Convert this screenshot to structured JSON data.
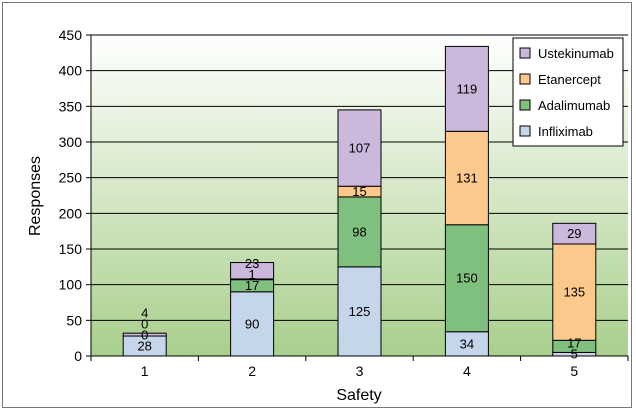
{
  "chart_data": {
    "type": "bar",
    "stacked": true,
    "categories": [
      "1",
      "2",
      "3",
      "4",
      "5"
    ],
    "xlabel": "Safety",
    "ylabel": "Responses",
    "ylim": [
      0,
      450
    ],
    "yticks": [
      "0",
      "50",
      "100",
      "150",
      "200",
      "250",
      "300",
      "350",
      "400",
      "450"
    ],
    "grid": true,
    "legend_position": "top-right",
    "series": [
      {
        "name": "Infliximab",
        "values": [
          28,
          90,
          125,
          34,
          5
        ],
        "color": "#c5d5ea"
      },
      {
        "name": "Adalimumab",
        "values": [
          0,
          17,
          98,
          150,
          17
        ],
        "color": "#7fc07f"
      },
      {
        "name": "Etanercept",
        "values": [
          0,
          1,
          15,
          131,
          135
        ],
        "color": "#fcc98c"
      },
      {
        "name": "Ustekinumab",
        "values": [
          4,
          23,
          107,
          119,
          29
        ],
        "color": "#ccb8dc"
      }
    ]
  }
}
